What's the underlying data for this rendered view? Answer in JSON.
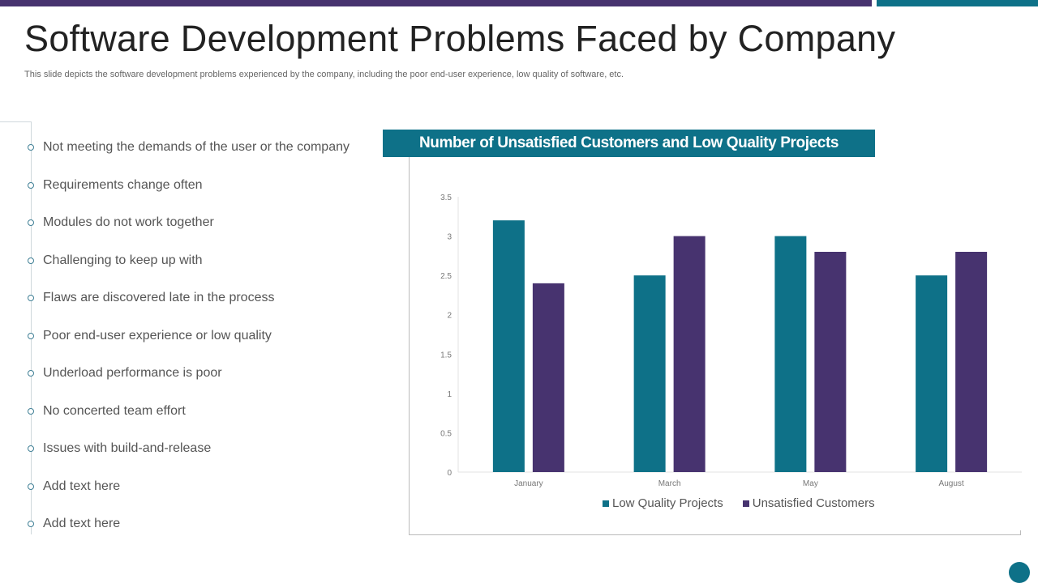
{
  "title": "Software Development Problems Faced by Company",
  "subtitle": "This slide depicts the software development problems experienced by the company, including the poor end-user experience, low quality of software, etc.",
  "problems": [
    "Not meeting the demands of the user or the company",
    "Requirements change often",
    "Modules do not work together",
    "Challenging to keep up with",
    "Flaws are discovered late in the process",
    "Poor end-user experience or low quality",
    "Underload performance is poor",
    "No concerted team effort",
    "Issues with build-and-release",
    "Add text here",
    "Add text here"
  ],
  "colors": {
    "teal": "#0e7188",
    "purple": "#47336f"
  },
  "chart_data": {
    "type": "bar",
    "title": "Number of Unsatisfied Customers and Low Quality Projects",
    "categories": [
      "January",
      "March",
      "May",
      "August"
    ],
    "series": [
      {
        "name": "Low Quality Projects",
        "values": [
          3.2,
          2.5,
          3.0,
          2.5
        ],
        "color": "#0e7188"
      },
      {
        "name": "Unsatisfied Customers",
        "values": [
          2.4,
          3.0,
          2.8,
          2.8
        ],
        "color": "#47336f"
      }
    ],
    "ylim": [
      0,
      3.5
    ],
    "yticks": [
      "0",
      "0.5",
      "1",
      "1.5",
      "2",
      "2.5",
      "3",
      "3.5"
    ],
    "grid": false,
    "legend": "bottom"
  }
}
